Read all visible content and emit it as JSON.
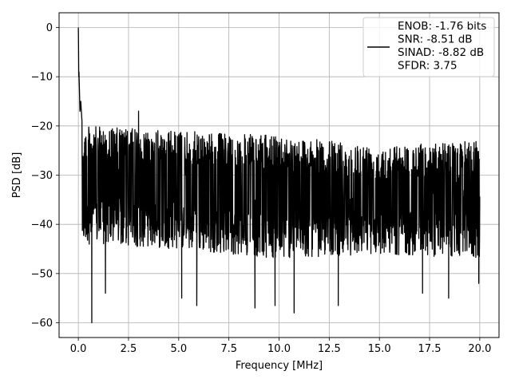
{
  "chart_data": {
    "type": "line",
    "title": "",
    "xlabel": "Frequency [MHz]",
    "ylabel": "PSD [dB]",
    "xlim": [
      -0.96,
      20.96
    ],
    "ylim": [
      -63,
      3
    ],
    "x_ticks": [
      0.0,
      2.5,
      5.0,
      7.5,
      10.0,
      12.5,
      15.0,
      17.5,
      20.0
    ],
    "x_tick_labels": [
      "0.0",
      "2.5",
      "5.0",
      "7.5",
      "10.0",
      "12.5",
      "15.0",
      "17.5",
      "20.0"
    ],
    "y_ticks": [
      0,
      -10,
      -20,
      -30,
      -40,
      -50,
      -60
    ],
    "y_tick_labels": [
      "0",
      "−10",
      "−20",
      "−30",
      "−40",
      "−50",
      "−60"
    ],
    "grid": true,
    "legend_position": "top-right",
    "series": [
      {
        "name": "ENOB: -1.76 bits\nSNR: -8.51 dB\nSINAD: -8.82 dB\nSFDR: 3.75",
        "legend_lines": [
          "ENOB: -1.76 bits",
          "SNR: -8.51 dB",
          "SINAD: -8.82 dB",
          "SFDR: 3.75"
        ],
        "color": "#000000",
        "x_range": [
          0,
          20
        ],
        "peak": {
          "x": 0.0,
          "y": 0
        },
        "head": {
          "x": [
            0.0,
            0.01,
            0.02,
            0.03,
            0.05,
            0.08,
            0.12,
            0.18
          ],
          "y": [
            0,
            -4,
            -10,
            -9,
            -12,
            -17,
            -15,
            -19
          ]
        },
        "noise_upper_envelope": [
          [
            0.2,
            -20
          ],
          [
            5.0,
            -21
          ],
          [
            10.0,
            -22
          ],
          [
            15.0,
            -24
          ],
          [
            20.0,
            -23
          ]
        ],
        "noise_lower_envelope": [
          [
            0.2,
            -44
          ],
          [
            5.0,
            -45
          ],
          [
            10.0,
            -47
          ],
          [
            15.0,
            -46
          ],
          [
            20.0,
            -47
          ]
        ],
        "notable_points": [
          {
            "x": 0.67,
            "y": -60
          },
          {
            "x": 1.35,
            "y": -54
          },
          {
            "x": 3.0,
            "y": -17
          },
          {
            "x": 5.15,
            "y": -55
          },
          {
            "x": 5.9,
            "y": -56.5
          },
          {
            "x": 8.8,
            "y": -57
          },
          {
            "x": 9.8,
            "y": -56.5
          },
          {
            "x": 10.75,
            "y": -58
          },
          {
            "x": 12.95,
            "y": -56.5
          },
          {
            "x": 17.15,
            "y": -54
          },
          {
            "x": 18.45,
            "y": -55
          },
          {
            "x": 19.95,
            "y": -52
          }
        ]
      }
    ]
  }
}
